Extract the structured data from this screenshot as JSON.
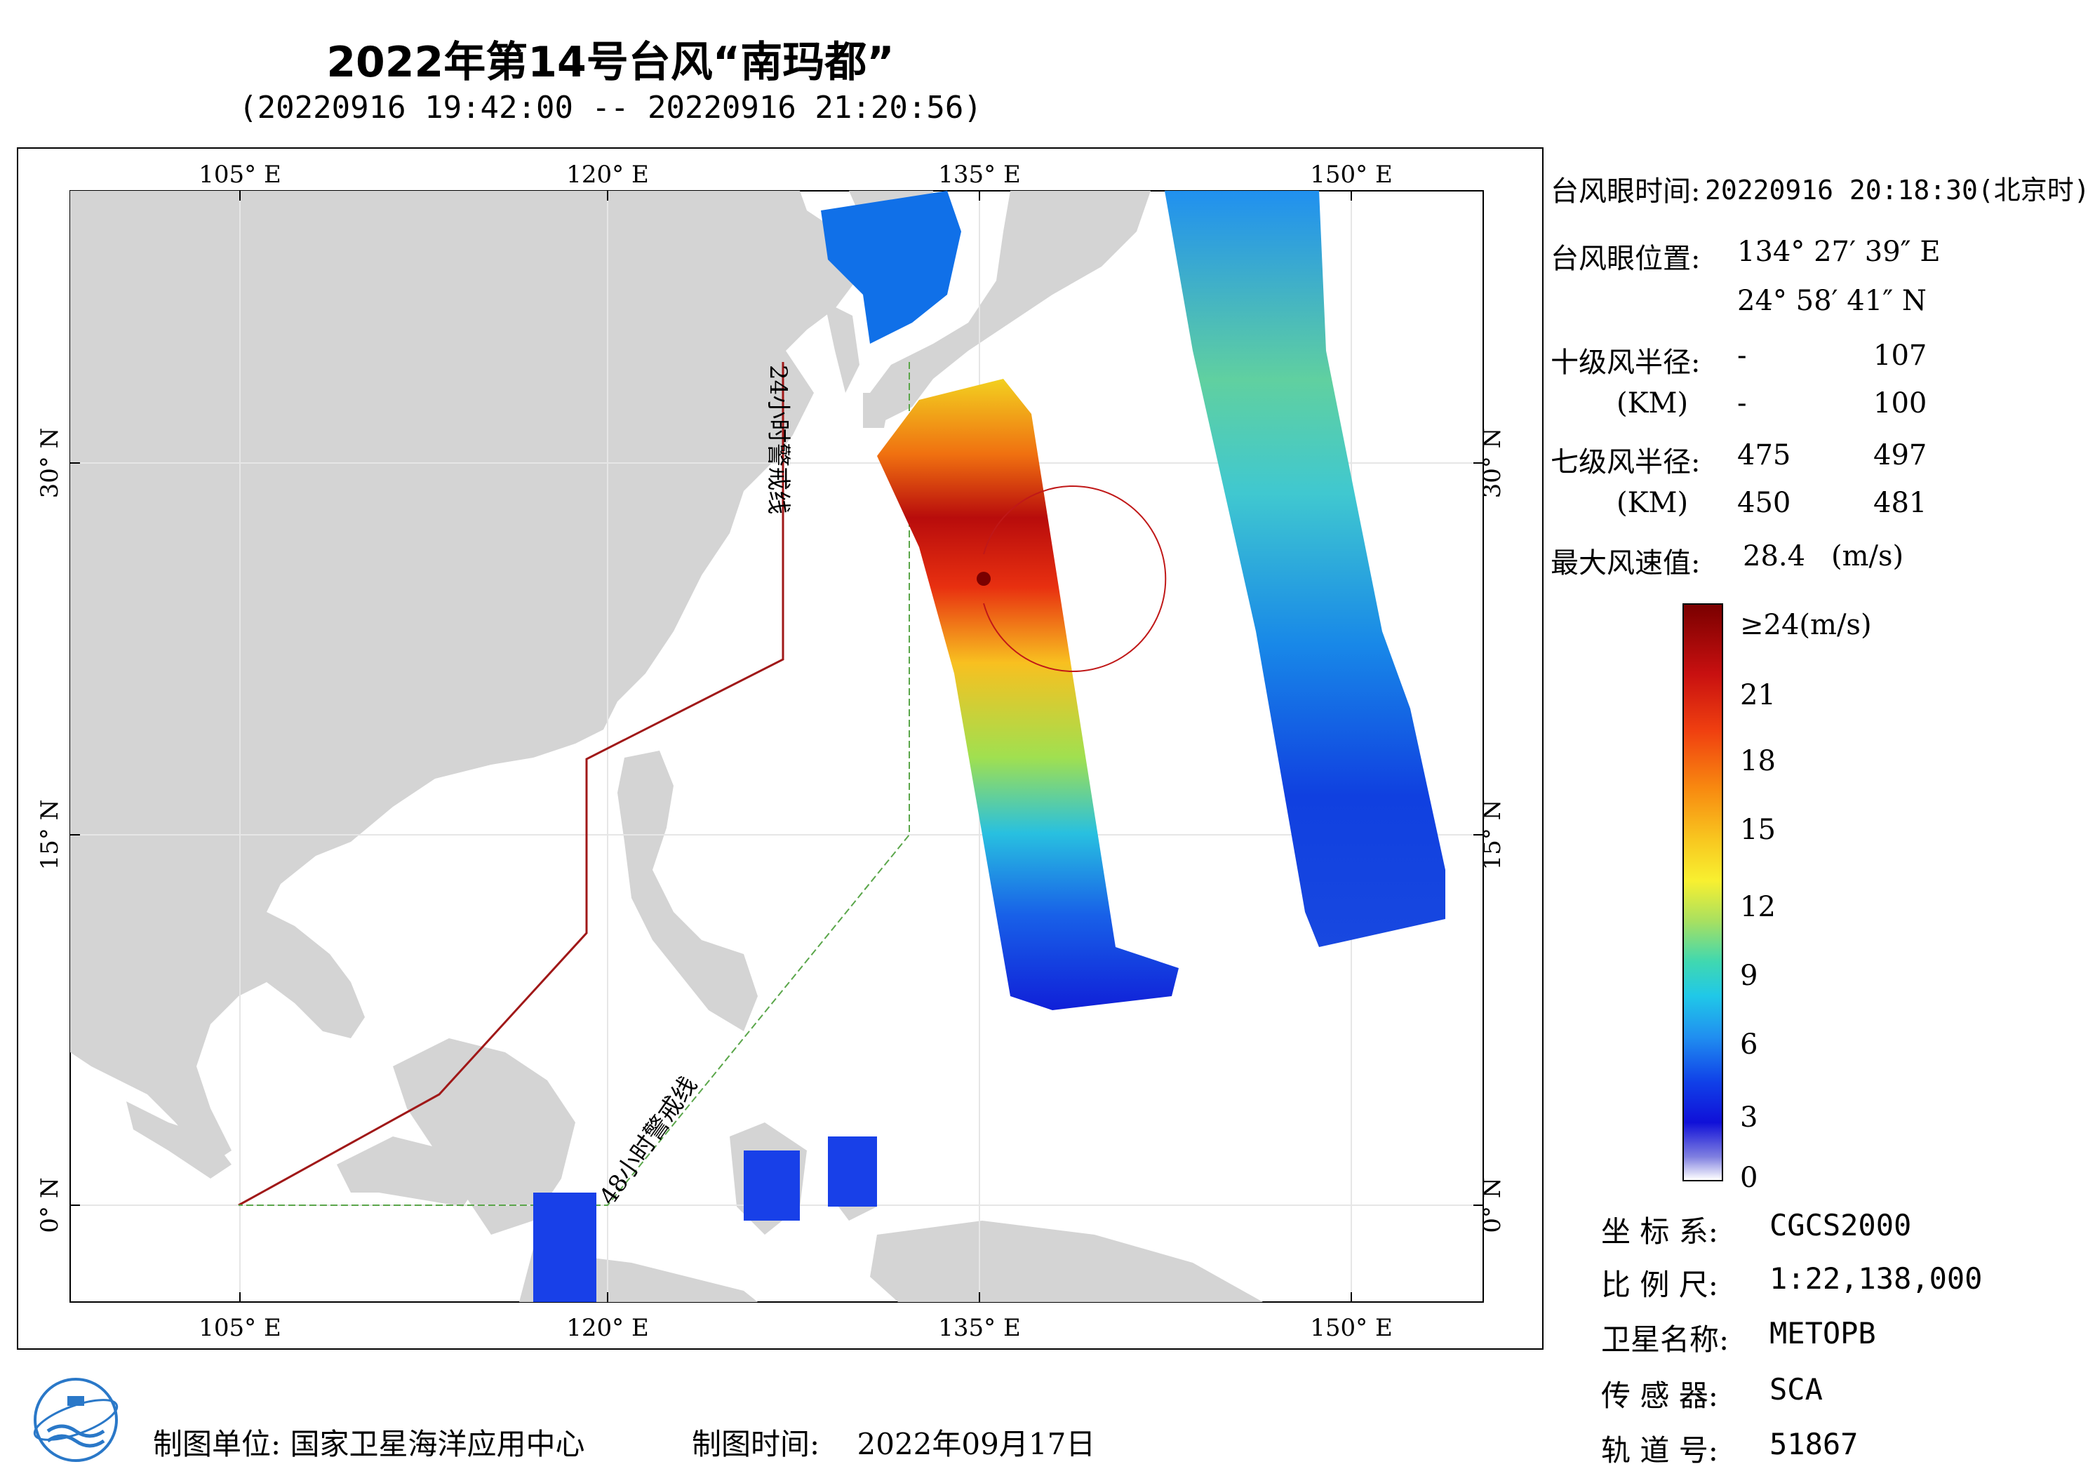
{
  "title": "2022年第14号台风“南玛都”",
  "subtitle": "(20220916 19:42:00 -- 20220916 21:20:56)",
  "map": {
    "lon_labels": [
      "105° E",
      "120° E",
      "135° E",
      "150° E"
    ],
    "lat_labels": [
      "30° N",
      "15° N",
      "0° N"
    ],
    "warning_24h": "24小时警戒线",
    "warning_48h": "48小时警戒线",
    "colors": {
      "land": "#d4d4d4",
      "sea": "#ffffff",
      "line24": "#a01818",
      "line48": "#5aa64a",
      "circle": "#c01818"
    }
  },
  "typhoon": {
    "eye_time_label": "台风眼时间:",
    "eye_time_value": "20220916 20:18:30(北京时)",
    "eye_pos_label": "台风眼位置:",
    "eye_lon": "134° 27′ 39″ E",
    "eye_lat": "24° 58′ 41″ N",
    "r10_label": "十级风半径:",
    "r10_unit": "(KM)",
    "r10": [
      [
        "-",
        "107"
      ],
      [
        "-",
        "100"
      ]
    ],
    "r7_label": "七级风半径:",
    "r7_unit": "(KM)",
    "r7": [
      [
        "475",
        "497"
      ],
      [
        "450",
        "481"
      ]
    ],
    "max_wind_label": "最大风速值:",
    "max_wind_value": "28.4",
    "max_wind_unit": "(m/s)"
  },
  "colorbar": {
    "ticks": [
      "≥24(m/s)",
      "21",
      "18",
      "15",
      "12",
      "9",
      "6",
      "3",
      "0"
    ]
  },
  "info": {
    "crs_label": "坐 标 系:",
    "crs_value": "CGCS2000",
    "scale_label": "比 例 尺:",
    "scale_value": "1:22,138,000",
    "sat_label": "卫星名称:",
    "sat_value": "METOPB",
    "sensor_label": "传 感 器:",
    "sensor_value": "SCA",
    "orbit_label": "轨 道 号:",
    "orbit_value": "51867"
  },
  "footer": {
    "maker_label": "制图单位:",
    "maker_value": "国家卫星海洋应用中心",
    "time_label": "制图时间:",
    "time_value": "2022年09月17日"
  }
}
